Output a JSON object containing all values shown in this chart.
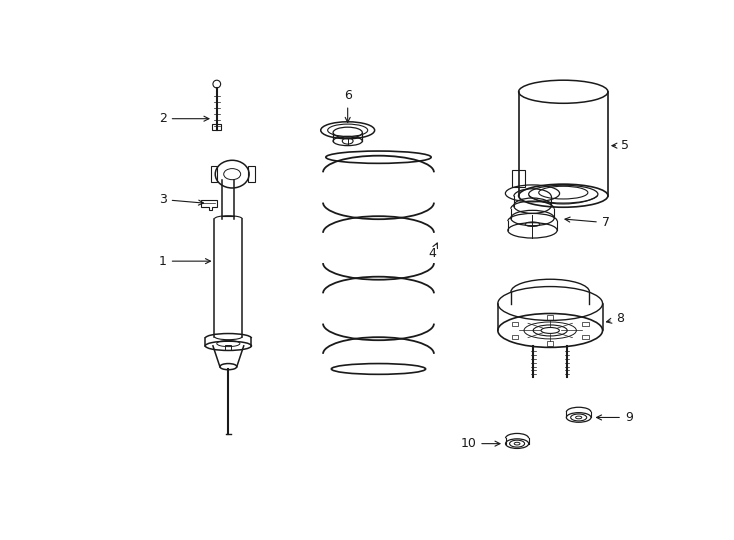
{
  "background_color": "#ffffff",
  "line_color": "#1a1a1a",
  "figure_width": 7.34,
  "figure_height": 5.4,
  "dpi": 100
}
